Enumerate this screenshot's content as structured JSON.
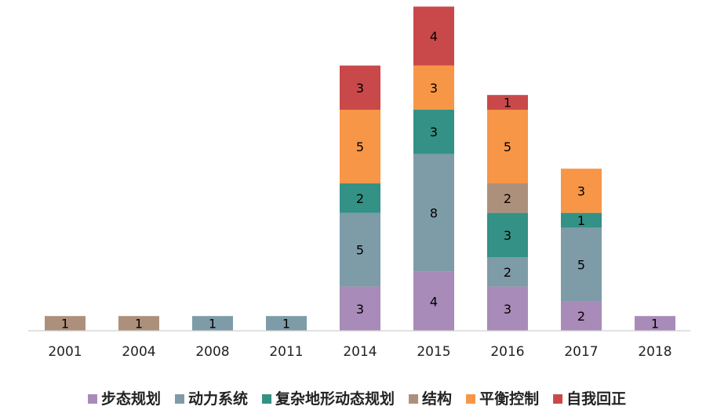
{
  "chart_data": {
    "type": "bar",
    "stacked": true,
    "categories": [
      "2001",
      "2004",
      "2008",
      "2011",
      "2014",
      "2015",
      "2016",
      "2017",
      "2018"
    ],
    "series": [
      {
        "name": "步态规划",
        "color": "#a88bb8",
        "values": [
          0,
          0,
          0,
          0,
          3,
          4,
          3,
          2,
          1
        ]
      },
      {
        "name": "动力系统",
        "color": "#7e9ba8",
        "values": [
          0,
          0,
          1,
          1,
          5,
          8,
          2,
          5,
          0
        ]
      },
      {
        "name": "复杂地形动态规划",
        "color": "#339185",
        "values": [
          0,
          0,
          0,
          0,
          2,
          3,
          3,
          1,
          0
        ]
      },
      {
        "name": "结构",
        "color": "#ad907b",
        "values": [
          1,
          1,
          0,
          0,
          0,
          0,
          2,
          0,
          0
        ]
      },
      {
        "name": "平衡控制",
        "color": "#f79646",
        "values": [
          0,
          0,
          0,
          0,
          5,
          3,
          5,
          3,
          0
        ]
      },
      {
        "name": "自我回正",
        "color": "#c9494a",
        "values": [
          0,
          0,
          0,
          0,
          3,
          4,
          1,
          0,
          0
        ]
      }
    ],
    "ylim": [
      0,
      22
    ],
    "grid": false,
    "legend": "bottom",
    "data_labels": true
  }
}
